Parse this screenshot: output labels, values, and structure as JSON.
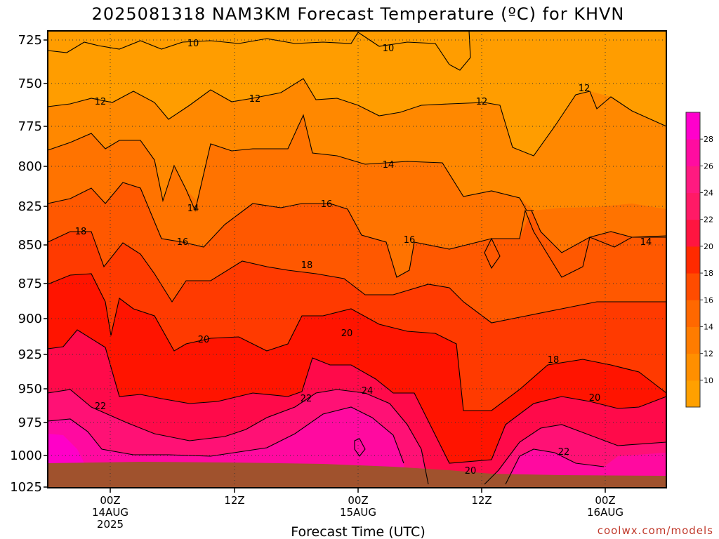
{
  "page": {
    "title": "2025081318 NAM3KM Forecast Temperature (ºC) for KHVN",
    "credit": "coolwx.com/models"
  },
  "chart_data": {
    "type": "contour",
    "title": "2025081318 NAM3KM Forecast Temperature (ºC) for KHVN",
    "xlabel": "Forecast Time (UTC)",
    "ylabel": "",
    "y_scale": "pressure (inverted, log-like)",
    "ylim": [
      1025,
      715
    ],
    "y_ticks": [
      "725",
      "750",
      "775",
      "800",
      "825",
      "850",
      "875",
      "900",
      "925",
      "950",
      "975",
      "1000",
      "1025"
    ],
    "x_ticks": [
      {
        "lines": [
          "00Z",
          "14AUG",
          "2025"
        ]
      },
      {
        "lines": [
          "12Z"
        ]
      },
      {
        "lines": [
          "00Z",
          "15AUG"
        ]
      },
      {
        "lines": [
          "12Z"
        ]
      },
      {
        "lines": [
          "00Z",
          "16AUG"
        ]
      }
    ],
    "grid": true,
    "colorbar": {
      "labels": [
        "10",
        "12",
        "14",
        "16",
        "18",
        "20",
        "22",
        "24",
        "26",
        "28"
      ],
      "colors": [
        "#ffa000",
        "#ff8f00",
        "#ff7c00",
        "#ff6800",
        "#ff4c00",
        "#ff2a00",
        "#ff1540",
        "#ff1a66",
        "#ff1a80",
        "#ff0ca0",
        "#ff00cc"
      ]
    },
    "contour_labels": [
      {
        "text": "10"
      },
      {
        "text": "10"
      },
      {
        "text": "12"
      },
      {
        "text": "12"
      },
      {
        "text": "12"
      },
      {
        "text": "12"
      },
      {
        "text": "14"
      },
      {
        "text": "14"
      },
      {
        "text": "14"
      },
      {
        "text": "16"
      },
      {
        "text": "16"
      },
      {
        "text": "16"
      },
      {
        "text": "18"
      },
      {
        "text": "18"
      },
      {
        "text": "18"
      },
      {
        "text": "20"
      },
      {
        "text": "20"
      },
      {
        "text": "20"
      },
      {
        "text": "20"
      },
      {
        "text": "22"
      },
      {
        "text": "22"
      },
      {
        "text": "22"
      },
      {
        "text": "24"
      }
    ],
    "notes": "Temperature in deg C by forecast hour and pressure level; surface (brown) near 1010 hPa."
  }
}
